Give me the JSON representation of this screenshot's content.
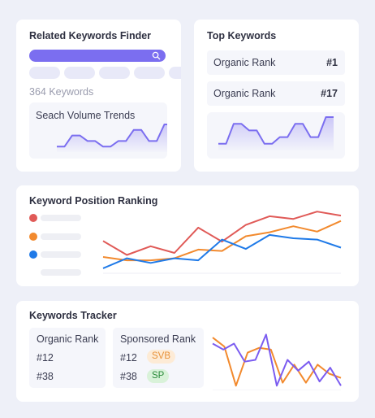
{
  "related": {
    "title": "Related Keywords Finder",
    "keyword_count": "364 Keywords",
    "trend_label": "Seach Volume Trends",
    "trend_values": [
      1,
      1,
      3,
      3,
      2,
      2,
      1,
      1,
      2,
      2,
      4,
      4,
      2,
      2,
      5,
      5
    ]
  },
  "top": {
    "title": "Top Keywords",
    "rows": [
      {
        "label": "Organic Rank",
        "value": "#1"
      },
      {
        "label": "Organic Rank",
        "value": "#17"
      }
    ],
    "trend_values": [
      1,
      1,
      4,
      4,
      3,
      3,
      1,
      1,
      2,
      2,
      4,
      4,
      2,
      2,
      5,
      5
    ]
  },
  "position": {
    "title": "Keyword Position Ranking",
    "colors": [
      "#e05a57",
      "#f28a2e",
      "#1f7ae8"
    ],
    "series": [
      {
        "color": "#e05a57",
        "values": [
          46,
          25,
          38,
          28,
          66,
          45,
          70,
          83,
          79,
          90,
          84
        ]
      },
      {
        "color": "#f28a2e",
        "values": [
          22,
          17,
          17,
          20,
          33,
          31,
          53,
          59,
          68,
          60,
          76
        ]
      },
      {
        "color": "#1f7ae8",
        "values": [
          5,
          20,
          13,
          20,
          17,
          48,
          34,
          55,
          50,
          48,
          36
        ]
      }
    ]
  },
  "tracker": {
    "title": "Keywords Tracker",
    "organic": {
      "header": "Organic Rank",
      "rows": [
        "#12",
        "#38"
      ]
    },
    "sponsored": {
      "header": "Sponsored Rank",
      "rows": [
        "#12",
        "#38"
      ],
      "badges": [
        "SVB",
        "SP"
      ]
    },
    "series": [
      {
        "color": "#f28a2e",
        "values": [
          85,
          70,
          5,
          60,
          68,
          65,
          10,
          40,
          10,
          40,
          25,
          18
        ]
      },
      {
        "color": "#7b5cf0",
        "values": [
          75,
          65,
          75,
          45,
          48,
          90,
          5,
          48,
          30,
          45,
          12,
          35,
          5
        ]
      }
    ]
  }
}
